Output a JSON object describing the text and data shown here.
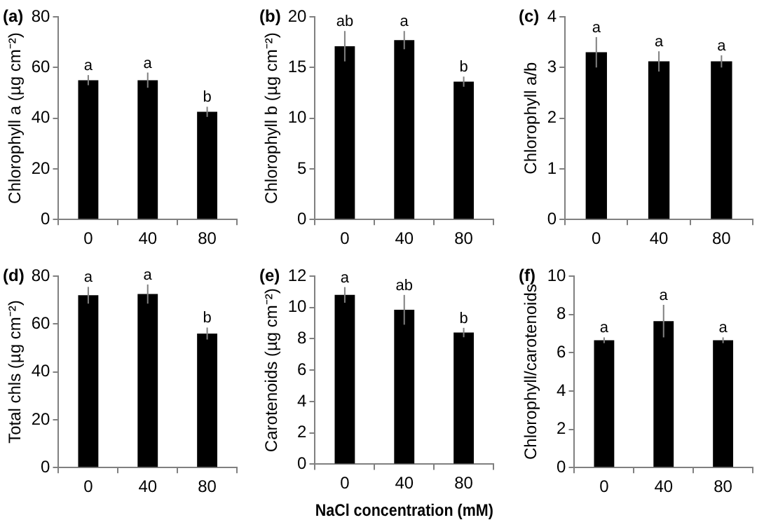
{
  "chart_data": [
    {
      "type": "bar",
      "title": "(a)",
      "ylabel": "Chlorophyll a (µg cm⁻²)",
      "categories": [
        "0",
        "40",
        "80"
      ],
      "values": [
        55,
        55,
        42.5
      ],
      "errors": [
        2,
        3,
        2
      ],
      "color": "#000000",
      "ylim": [
        0,
        80
      ],
      "yticks": [
        0,
        20,
        40,
        60,
        80
      ],
      "grid": false,
      "annotations": [
        {
          "text": "a",
          "x": "0",
          "y": 57
        },
        {
          "text": "a",
          "x": "40",
          "y": 58
        },
        {
          "text": "b",
          "x": "80",
          "y": 44.5
        }
      ]
    },
    {
      "type": "bar",
      "title": "(b)",
      "ylabel": "Chlorophyll b (µg cm⁻²)",
      "categories": [
        "0",
        "40",
        "80"
      ],
      "values": [
        17.1,
        17.7,
        13.6
      ],
      "errors": [
        1.5,
        0.9,
        0.5
      ],
      "color": "#000000",
      "ylim": [
        0,
        20
      ],
      "yticks": [
        0,
        5,
        10,
        15,
        20
      ],
      "grid": false,
      "annotations": [
        {
          "text": "ab",
          "x": "0",
          "y": 18.6
        },
        {
          "text": "a",
          "x": "40",
          "y": 18.6
        },
        {
          "text": "b",
          "x": "80",
          "y": 14.1
        }
      ]
    },
    {
      "type": "bar",
      "title": "(c)",
      "ylabel": "Chlorophyll a/b",
      "categories": [
        "0",
        "40",
        "80"
      ],
      "values": [
        3.3,
        3.12,
        3.12
      ],
      "errors": [
        0.3,
        0.2,
        0.12
      ],
      "color": "#000000",
      "ylim": [
        0,
        4
      ],
      "yticks": [
        0,
        1,
        2,
        3,
        4
      ],
      "grid": false,
      "annotations": [
        {
          "text": "a",
          "x": "0",
          "y": 3.6
        },
        {
          "text": "a",
          "x": "40",
          "y": 3.32
        },
        {
          "text": "a",
          "x": "80",
          "y": 3.24
        }
      ]
    },
    {
      "type": "bar",
      "title": "(d)",
      "ylabel": "Total chls (µg cm⁻²)",
      "categories": [
        "0",
        "40",
        "80"
      ],
      "values": [
        72,
        72.5,
        56
      ],
      "errors": [
        3.5,
        4,
        2.5
      ],
      "color": "#000000",
      "ylim": [
        0,
        80
      ],
      "yticks": [
        0,
        20,
        40,
        60,
        80
      ],
      "grid": false,
      "annotations": [
        {
          "text": "a",
          "x": "0",
          "y": 75.5
        },
        {
          "text": "a",
          "x": "40",
          "y": 76.5
        },
        {
          "text": "b",
          "x": "80",
          "y": 58.5
        }
      ]
    },
    {
      "type": "bar",
      "title": "(e)",
      "xlabel": "NaCl concentration (mM)",
      "ylabel": "Carotenoids (µg cm⁻²)",
      "categories": [
        "0",
        "40",
        "80"
      ],
      "values": [
        10.8,
        9.85,
        8.4
      ],
      "errors": [
        0.5,
        0.95,
        0.3
      ],
      "color": "#000000",
      "ylim": [
        0,
        12
      ],
      "yticks": [
        0,
        2,
        4,
        6,
        8,
        10,
        12
      ],
      "grid": false,
      "annotations": [
        {
          "text": "a",
          "x": "0",
          "y": 11.3
        },
        {
          "text": "ab",
          "x": "40",
          "y": 10.8
        },
        {
          "text": "b",
          "x": "80",
          "y": 8.7
        }
      ]
    },
    {
      "type": "bar",
      "title": "(f)",
      "ylabel": "Chlorophyll/carotenoids",
      "categories": [
        "0",
        "40",
        "80"
      ],
      "values": [
        6.65,
        7.65,
        6.65
      ],
      "errors": [
        0.15,
        0.85,
        0.15
      ],
      "color": "#000000",
      "ylim": [
        0,
        10
      ],
      "yticks": [
        0,
        2,
        4,
        6,
        8,
        10
      ],
      "grid": false,
      "annotations": [
        {
          "text": "a",
          "x": "0",
          "y": 6.8
        },
        {
          "text": "a",
          "x": "40",
          "y": 8.5
        },
        {
          "text": "a",
          "x": "80",
          "y": 6.8
        }
      ]
    }
  ]
}
